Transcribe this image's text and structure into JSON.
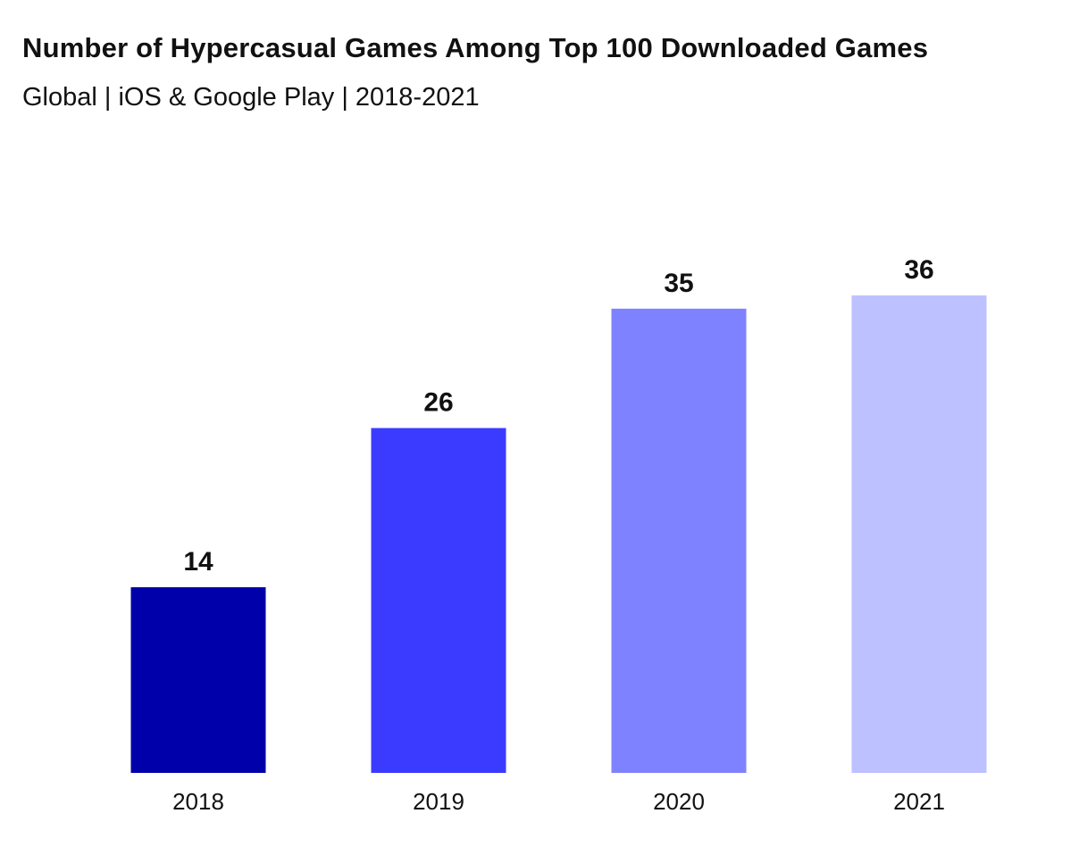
{
  "chart_data": {
    "type": "bar",
    "title": "Number of Hypercasual Games Among Top 100 Downloaded Games",
    "subtitle": "Global | iOS & Google Play | 2018-2021",
    "categories": [
      "2018",
      "2019",
      "2020",
      "2021"
    ],
    "values": [
      14,
      26,
      35,
      36
    ],
    "colors": [
      "#0000AA",
      "#3B3BFF",
      "#7F82FF",
      "#BEC1FF"
    ],
    "xlabel": "",
    "ylabel": "",
    "ylim": [
      0,
      36
    ],
    "grid": false,
    "data_labels": true
  }
}
